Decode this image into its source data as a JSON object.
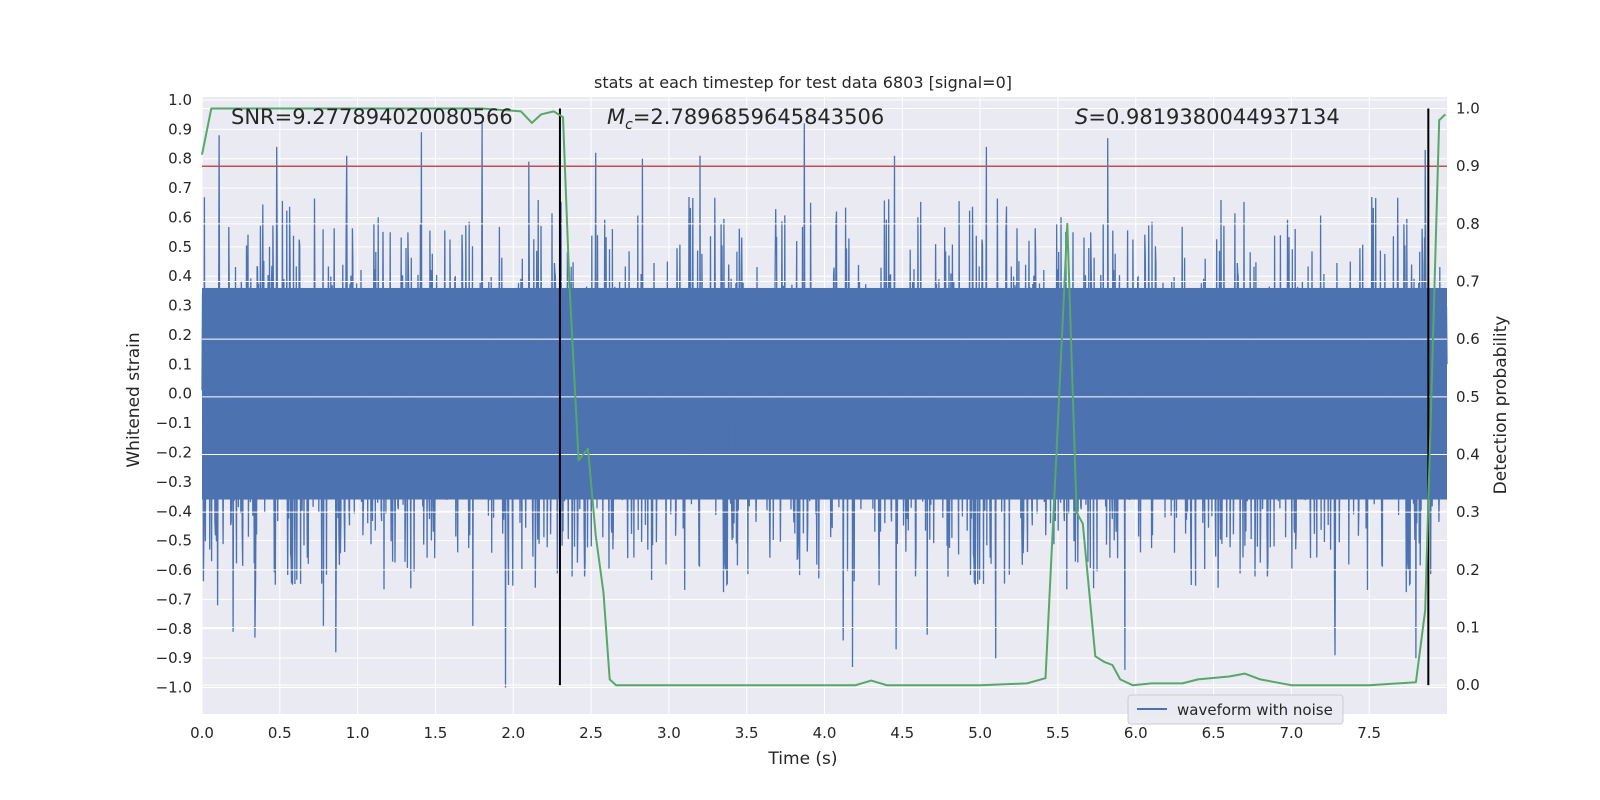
{
  "chart_data": {
    "type": "line",
    "title": "stats at each timestep for test data 6803 [signal=0]",
    "xlabel": "Time (s)",
    "ylabel": "Whitened strain",
    "y2label": "Detection probability",
    "xlim": [
      0.0,
      8.0
    ],
    "ylim": [
      -1.09,
      1.01
    ],
    "y2lim": [
      -0.05,
      1.02
    ],
    "xticks": [
      0.0,
      0.5,
      1.0,
      1.5,
      2.0,
      2.5,
      3.0,
      3.5,
      4.0,
      4.5,
      5.0,
      5.5,
      6.0,
      6.5,
      7.0,
      7.5
    ],
    "xtick_labels": [
      "0.0",
      "0.5",
      "1.0",
      "1.5",
      "2.0",
      "2.5",
      "3.0",
      "3.5",
      "4.0",
      "4.5",
      "5.0",
      "5.5",
      "6.0",
      "6.5",
      "7.0",
      "7.5"
    ],
    "yticks": [
      1.0,
      0.9,
      0.8,
      0.7,
      0.6,
      0.5,
      0.4,
      0.3,
      0.2,
      0.1,
      0.0,
      -0.1,
      -0.2,
      -0.3,
      -0.4,
      -0.5,
      -0.6,
      -0.7,
      -0.8,
      -0.9,
      -1.0
    ],
    "ytick_labels": [
      "1.0",
      "0.9",
      "0.8",
      "0.7",
      "0.6",
      "0.5",
      "0.4",
      "0.3",
      "0.2",
      "0.1",
      "0.0",
      "−0.1",
      "−0.2",
      "−0.3",
      "−0.4",
      "−0.5",
      "−0.6",
      "−0.7",
      "−0.8",
      "−0.9",
      "−1.0"
    ],
    "y2ticks": [
      1.0,
      0.9,
      0.8,
      0.7,
      0.6,
      0.5,
      0.4,
      0.3,
      0.2,
      0.1,
      0.0
    ],
    "y2tick_labels": [
      "1.0",
      "0.9",
      "0.8",
      "0.7",
      "0.6",
      "0.5",
      "0.4",
      "0.3",
      "0.2",
      "0.1",
      "0.0"
    ],
    "annotations": {
      "snr": "SNR=9.277894020080566",
      "mc_symbol": "M",
      "mc_sub": "c",
      "mc_value": "=2.7896859645843506",
      "s_symbol": "S",
      "s_value": "=0.9819380044937134"
    },
    "threshold_probability": 0.9,
    "vertical_markers": [
      2.3,
      7.88
    ],
    "colors": {
      "background": "#eaeaf2",
      "grid": "#ffffff",
      "waveform": "#4c72b0",
      "probability": "#55a868",
      "threshold": "#c44e52",
      "marker": "#000000"
    },
    "series": [
      {
        "name": "waveform with noise",
        "axis": "left",
        "envelope": {
          "core_amplitude": 0.36,
          "typical_peak": 0.55,
          "max_peak": 0.92,
          "min_trough": -1.0,
          "notable_peaks": [
            [
              0.11,
              0.88
            ],
            [
              0.34,
              0.78
            ],
            [
              0.48,
              0.84
            ],
            [
              0.78,
              0.85
            ],
            [
              0.93,
              0.81
            ],
            [
              1.41,
              0.89
            ],
            [
              1.8,
              0.92
            ],
            [
              2.1,
              0.79
            ],
            [
              2.53,
              0.82
            ],
            [
              2.83,
              0.8
            ],
            [
              3.2,
              0.81
            ],
            [
              3.87,
              0.92
            ],
            [
              4.45,
              0.81
            ],
            [
              5.04,
              0.84
            ],
            [
              5.82,
              0.87
            ],
            [
              7.86,
              0.83
            ]
          ],
          "notable_troughs": [
            [
              0.1,
              -0.72
            ],
            [
              0.2,
              -0.81
            ],
            [
              0.34,
              -0.83
            ],
            [
              0.78,
              -0.79
            ],
            [
              0.86,
              -0.88
            ],
            [
              1.74,
              -0.79
            ],
            [
              1.95,
              -1.0
            ],
            [
              2.3,
              -0.81
            ],
            [
              4.12,
              -0.84
            ],
            [
              4.18,
              -0.93
            ],
            [
              4.46,
              -0.87
            ],
            [
              4.66,
              -0.82
            ],
            [
              5.1,
              -0.9
            ],
            [
              5.93,
              -0.94
            ],
            [
              7.28,
              -0.89
            ],
            [
              7.8,
              -0.9
            ]
          ]
        }
      },
      {
        "name": "detection probability",
        "axis": "right",
        "x": [
          0.0,
          0.06,
          0.3,
          0.6,
          1.0,
          1.5,
          1.8,
          2.05,
          2.12,
          2.18,
          2.26,
          2.32,
          2.36,
          2.42,
          2.48,
          2.53,
          2.58,
          2.62,
          2.66,
          3.0,
          3.2,
          3.5,
          4.0,
          4.2,
          4.3,
          4.4,
          4.6,
          5.0,
          5.3,
          5.42,
          5.49,
          5.56,
          5.62,
          5.66,
          5.74,
          5.8,
          5.85,
          5.9,
          5.98,
          6.1,
          6.3,
          6.4,
          6.6,
          6.7,
          6.8,
          7.0,
          7.5,
          7.8,
          7.86,
          7.91,
          7.95,
          7.99
        ],
        "y": [
          0.92,
          1.0,
          1.0,
          1.0,
          1.0,
          1.0,
          1.0,
          0.995,
          0.975,
          0.99,
          0.995,
          0.985,
          0.7,
          0.39,
          0.41,
          0.26,
          0.16,
          0.01,
          0.0,
          0.0,
          0.0,
          0.0,
          0.0,
          0.0,
          0.008,
          0.0,
          0.0,
          0.0,
          0.003,
          0.012,
          0.4,
          0.8,
          0.3,
          0.28,
          0.05,
          0.04,
          0.035,
          0.01,
          0.0,
          0.003,
          0.003,
          0.01,
          0.015,
          0.02,
          0.01,
          0.0,
          0.0,
          0.005,
          0.13,
          0.6,
          0.98,
          0.99
        ]
      }
    ],
    "legend": {
      "entries": [
        "waveform with noise"
      ],
      "placement": "lower-right"
    }
  }
}
